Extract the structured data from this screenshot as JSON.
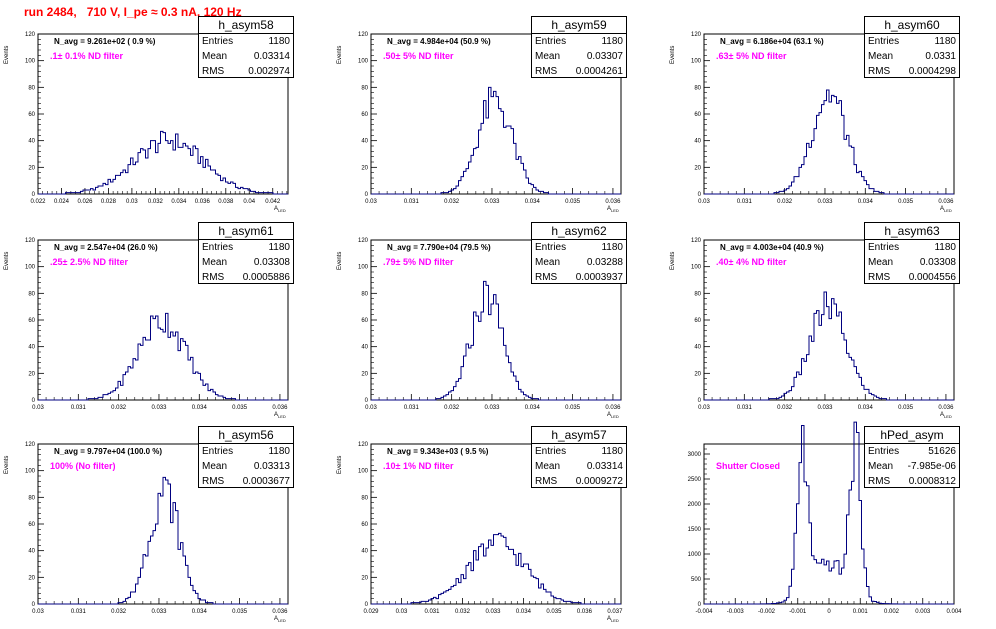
{
  "title": "run 2484,   710 V, I_pe ≈ 0.3 nA, 120 Hz",
  "colors": {
    "title": "#ff0000",
    "hist": "#000080",
    "filter_text": "#ff00ff"
  },
  "stats_labels": {
    "entries": "Entries",
    "mean": "Mean",
    "rms": "RMS"
  },
  "chart_data": [
    {
      "type": "bar",
      "name": "h_asym58",
      "ylabel": "Events",
      "xlabel": "A",
      "xlabel_sub": "LED",
      "annotation": "N_avg = 9.261e+02 ( 0.9 %)",
      "filter": ".1± 0.1% ND filter",
      "stats": {
        "entries": "1180",
        "mean": "0.03314",
        "rms": "0.002974"
      },
      "xlim": [
        0.022,
        0.0433
      ],
      "ylim": [
        0,
        120
      ],
      "xticks": [
        "0.022",
        "0.024",
        "0.026",
        "0.028",
        "0.03",
        "0.032",
        "0.034",
        "0.036",
        "0.038",
        "0.04",
        "0.042"
      ],
      "yticks": [
        "0",
        "20",
        "40",
        "60",
        "80",
        "100",
        "120"
      ],
      "peaks": [
        {
          "mean": 0.03314,
          "sigma": 0.002974,
          "peak": 40,
          "amp": 1.0
        }
      ]
    },
    {
      "type": "bar",
      "name": "h_asym59",
      "ylabel": "Events",
      "xlabel": "A",
      "xlabel_sub": "LED",
      "annotation": "N_avg = 4.984e+04 (50.9 %)",
      "filter": ".50± 5% ND filter",
      "stats": {
        "entries": "1180",
        "mean": "0.03307",
        "rms": "0.0004261"
      },
      "xlim": [
        0.03,
        0.0362
      ],
      "ylim": [
        0,
        120
      ],
      "xticks": [
        "0.03",
        "0.031",
        "0.032",
        "0.033",
        "0.034",
        "0.035",
        "0.036"
      ],
      "yticks": [
        "0",
        "20",
        "40",
        "60",
        "80",
        "100",
        "120"
      ],
      "peaks": [
        {
          "mean": 0.03307,
          "sigma": 0.0004261,
          "peak": 70,
          "amp": 1.0
        }
      ]
    },
    {
      "type": "bar",
      "name": "h_asym60",
      "ylabel": "Events",
      "xlabel": "A",
      "xlabel_sub": "LED",
      "annotation": "N_avg = 6.186e+04 (63.1 %)",
      "filter": ".63± 5% ND filter",
      "stats": {
        "entries": "1180",
        "mean": "0.0331",
        "rms": "0.0004298"
      },
      "xlim": [
        0.03,
        0.0362
      ],
      "ylim": [
        0,
        120
      ],
      "xticks": [
        "0.03",
        "0.031",
        "0.032",
        "0.033",
        "0.034",
        "0.035",
        "0.036"
      ],
      "yticks": [
        "0",
        "20",
        "40",
        "60",
        "80",
        "100",
        "120"
      ],
      "peaks": [
        {
          "mean": 0.0331,
          "sigma": 0.0004298,
          "peak": 75,
          "amp": 1.0
        }
      ]
    },
    {
      "type": "bar",
      "name": "h_asym61",
      "ylabel": "Events",
      "xlabel": "A",
      "xlabel_sub": "LED",
      "annotation": "N_avg = 2.547e+04 (26.0 %)",
      "filter": ".25± 2.5% ND filter",
      "stats": {
        "entries": "1180",
        "mean": "0.03308",
        "rms": "0.0005886"
      },
      "xlim": [
        0.03,
        0.0362
      ],
      "ylim": [
        0,
        120
      ],
      "xticks": [
        "0.03",
        "0.031",
        "0.032",
        "0.033",
        "0.034",
        "0.035",
        "0.036"
      ],
      "yticks": [
        "0",
        "20",
        "40",
        "60",
        "80",
        "100",
        "120"
      ],
      "peaks": [
        {
          "mean": 0.03308,
          "sigma": 0.0005886,
          "peak": 60,
          "amp": 1.0
        }
      ]
    },
    {
      "type": "bar",
      "name": "h_asym62",
      "ylabel": "Events",
      "xlabel": "A",
      "xlabel_sub": "LED",
      "annotation": "N_avg = 7.790e+04 (79.5 %)",
      "filter": ".79± 5% ND filter",
      "stats": {
        "entries": "1180",
        "mean": "0.03288",
        "rms": "0.0003937"
      },
      "xlim": [
        0.03,
        0.0362
      ],
      "ylim": [
        0,
        120
      ],
      "xticks": [
        "0.03",
        "0.031",
        "0.032",
        "0.033",
        "0.034",
        "0.035",
        "0.036"
      ],
      "yticks": [
        "0",
        "20",
        "40",
        "60",
        "80",
        "100",
        "120"
      ],
      "peaks": [
        {
          "mean": 0.03288,
          "sigma": 0.0003937,
          "peak": 78,
          "amp": 1.0
        }
      ]
    },
    {
      "type": "bar",
      "name": "h_asym63",
      "ylabel": "Events",
      "xlabel": "A",
      "xlabel_sub": "LED",
      "annotation": "N_avg = 4.003e+04 (40.9 %)",
      "filter": ".40± 4% ND filter",
      "stats": {
        "entries": "1180",
        "mean": "0.03308",
        "rms": "0.0004556"
      },
      "xlim": [
        0.03,
        0.0362
      ],
      "ylim": [
        0,
        120
      ],
      "xticks": [
        "0.03",
        "0.031",
        "0.032",
        "0.033",
        "0.034",
        "0.035",
        "0.036"
      ],
      "yticks": [
        "0",
        "20",
        "40",
        "60",
        "80",
        "100",
        "120"
      ],
      "peaks": [
        {
          "mean": 0.03308,
          "sigma": 0.0004556,
          "peak": 70,
          "amp": 1.0
        }
      ]
    },
    {
      "type": "bar",
      "name": "h_asym56",
      "ylabel": "Events",
      "xlabel": "A",
      "xlabel_sub": "LED",
      "annotation": "N_avg = 9.797e+04 (100.0 %)",
      "filter": "100% (No filter)",
      "stats": {
        "entries": "1180",
        "mean": "0.03313",
        "rms": "0.0003677"
      },
      "xlim": [
        0.03,
        0.0362
      ],
      "ylim": [
        0,
        120
      ],
      "xticks": [
        "0.03",
        "0.031",
        "0.032",
        "0.033",
        "0.034",
        "0.035",
        "0.036"
      ],
      "yticks": [
        "0",
        "20",
        "40",
        "60",
        "80",
        "100",
        "120"
      ],
      "peaks": [
        {
          "mean": 0.03313,
          "sigma": 0.0003677,
          "peak": 85,
          "amp": 1.0
        }
      ]
    },
    {
      "type": "bar",
      "name": "h_asym57",
      "ylabel": "Events",
      "xlabel": "A",
      "xlabel_sub": "LED",
      "annotation": "N_avg = 9.343e+03 ( 9.5 %)",
      "filter": ".10± 1% ND filter",
      "stats": {
        "entries": "1180",
        "mean": "0.03314",
        "rms": "0.0009272"
      },
      "xlim": [
        0.029,
        0.0372
      ],
      "ylim": [
        0,
        120
      ],
      "xticks": [
        "0.029",
        "0.03",
        "0.031",
        "0.032",
        "0.033",
        "0.034",
        "0.035",
        "0.036",
        "0.037"
      ],
      "yticks": [
        "0",
        "20",
        "40",
        "60",
        "80",
        "100",
        "120"
      ],
      "peaks": [
        {
          "mean": 0.03314,
          "sigma": 0.0009272,
          "peak": 46,
          "amp": 1.0
        }
      ]
    },
    {
      "type": "bar",
      "name": "hPed_asym",
      "ylabel": "",
      "xlabel": "",
      "xlabel_sub": "",
      "annotation": "",
      "filter": "Shutter Closed",
      "stats": {
        "entries": "51626",
        "mean": "-7.985e-06",
        "rms": "0.0008312"
      },
      "xlim": [
        -0.004,
        0.004
      ],
      "ylim": [
        0,
        3200
      ],
      "xticks": [
        "-0.004",
        "-0.003",
        "-0.002",
        "-0.001",
        "0",
        "0.001",
        "0.002",
        "0.003",
        "0.004"
      ],
      "yticks": [
        "0",
        "500",
        "1000",
        "1500",
        "2000",
        "2500",
        "3000"
      ],
      "peaks": [
        {
          "mean": -0.00085,
          "sigma": 0.00017,
          "peak": 2850,
          "amp": 1.0
        },
        {
          "mean": 0.00085,
          "sigma": 0.00017,
          "peak": 3000,
          "amp": 1.0
        },
        {
          "mean": 0.0,
          "sigma": 0.0006,
          "peak": 800,
          "amp": 1.0
        }
      ]
    }
  ]
}
